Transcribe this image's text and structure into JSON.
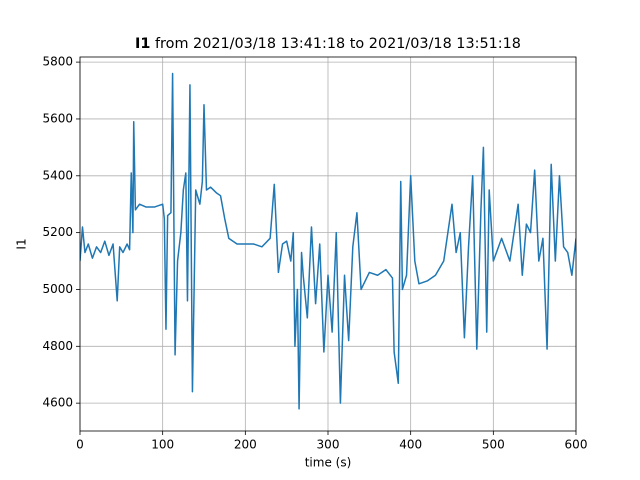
{
  "chart_data": {
    "type": "line",
    "title_bold": "I1",
    "title": "from 2021/03/18 13:41:18 to 2021/03/18 13:51:18",
    "xlabel": "time (s)",
    "ylabel": "I1",
    "x": [
      0,
      3,
      6,
      10,
      15,
      20,
      25,
      30,
      35,
      40,
      45,
      48,
      52,
      57,
      60,
      62,
      64,
      65,
      67,
      72,
      80,
      90,
      100,
      102,
      104,
      106,
      110,
      112,
      115,
      118,
      122,
      125,
      128,
      130,
      133,
      136,
      140,
      145,
      148,
      150,
      153,
      158,
      165,
      170,
      175,
      180,
      190,
      200,
      210,
      220,
      230,
      235,
      240,
      245,
      250,
      255,
      258,
      260,
      263,
      265,
      268,
      270,
      275,
      280,
      285,
      290,
      295,
      300,
      305,
      310,
      315,
      320,
      325,
      330,
      335,
      340,
      350,
      360,
      370,
      378,
      380,
      385,
      388,
      390,
      395,
      400,
      405,
      410,
      420,
      430,
      440,
      450,
      455,
      460,
      465,
      470,
      475,
      480,
      485,
      488,
      492,
      495,
      500,
      510,
      520,
      530,
      535,
      540,
      545,
      550,
      555,
      560,
      565,
      570,
      575,
      580,
      585,
      590,
      595,
      600
    ],
    "series": [
      {
        "name": "I1",
        "color": "#1f77b4",
        "values": [
          5100,
          5220,
          5130,
          5160,
          5110,
          5150,
          5130,
          5170,
          5120,
          5160,
          4960,
          5150,
          5130,
          5160,
          5140,
          5410,
          5200,
          5590,
          5280,
          5300,
          5290,
          5290,
          5300,
          5250,
          4860,
          5260,
          5270,
          5760,
          4770,
          5100,
          5200,
          5350,
          5410,
          4960,
          5720,
          4640,
          5350,
          5300,
          5380,
          5650,
          5350,
          5360,
          5340,
          5330,
          5250,
          5180,
          5160,
          5160,
          5160,
          5150,
          5180,
          5370,
          5060,
          5160,
          5170,
          5100,
          5200,
          4800,
          5000,
          4580,
          5130,
          5050,
          4900,
          5220,
          4950,
          5160,
          4780,
          5050,
          4850,
          5200,
          4600,
          5050,
          4820,
          5150,
          5270,
          5000,
          5060,
          5050,
          5070,
          5040,
          4780,
          4670,
          5380,
          5000,
          5050,
          5400,
          5100,
          5020,
          5030,
          5050,
          5100,
          5300,
          5130,
          5200,
          4830,
          5150,
          5400,
          4790,
          5280,
          5500,
          4850,
          5350,
          5100,
          5180,
          5100,
          5300,
          5050,
          5230,
          5200,
          5420,
          5100,
          5180,
          4790,
          5440,
          5100,
          5400,
          5150,
          5130,
          5050,
          5180
        ]
      }
    ],
    "xlim": [
      0,
      600
    ],
    "xticks": [
      0,
      100,
      200,
      300,
      400,
      500,
      600
    ],
    "ylim": [
      4502,
      5818
    ],
    "yticks": [
      4600,
      4800,
      5000,
      5200,
      5400,
      5600,
      5800
    ],
    "grid": true
  }
}
